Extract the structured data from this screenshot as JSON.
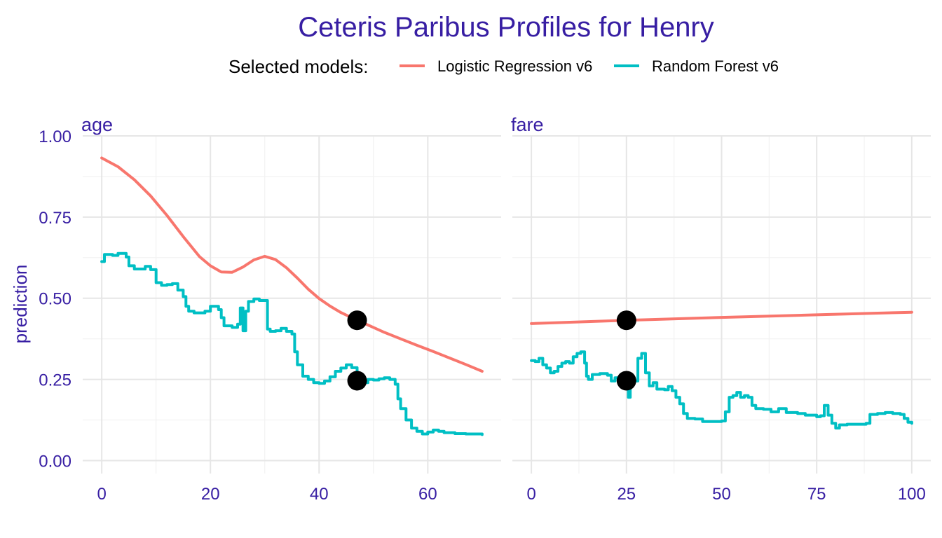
{
  "colors": {
    "text_accent": "#371EA3",
    "logistic": "#F8766D",
    "forest": "#00BFC4",
    "grid_major": "#E6E6E6",
    "grid_minor": "#F2F2F2",
    "point": "#000000"
  },
  "chart_data": {
    "type": "line",
    "title": "Ceteris Paribus Profiles for Henry",
    "legend": {
      "title": "Selected models:",
      "position": "top",
      "entries": [
        "Logistic Regression v6",
        "Random Forest v6"
      ]
    },
    "ylabel": "prediction",
    "ylim": [
      -0.04,
      1.0
    ],
    "yticks": [
      0.0,
      0.25,
      0.5,
      0.75,
      1.0
    ],
    "ytick_labels": [
      "0.00",
      "0.25",
      "0.50",
      "0.75",
      "1.00"
    ],
    "grid": true,
    "panels": [
      {
        "name": "age",
        "xlim": [
          -3.5,
          73.5
        ],
        "xticks": [
          0,
          20,
          40,
          60
        ],
        "xtick_labels": [
          "0",
          "20",
          "40",
          "60"
        ],
        "observation": {
          "x": 47,
          "values": {
            "Logistic Regression v6": 0.432,
            "Random Forest v6": 0.246
          }
        },
        "series": [
          {
            "name": "Logistic Regression v6",
            "step": false,
            "points": [
              [
                0,
                0.932
              ],
              [
                3,
                0.905
              ],
              [
                6,
                0.865
              ],
              [
                9,
                0.815
              ],
              [
                12,
                0.755
              ],
              [
                15,
                0.69
              ],
              [
                18,
                0.628
              ],
              [
                20,
                0.6
              ],
              [
                22,
                0.581
              ],
              [
                24,
                0.58
              ],
              [
                26,
                0.596
              ],
              [
                28,
                0.618
              ],
              [
                30,
                0.629
              ],
              [
                32,
                0.619
              ],
              [
                34,
                0.594
              ],
              [
                36,
                0.562
              ],
              [
                38,
                0.528
              ],
              [
                40,
                0.499
              ],
              [
                42,
                0.476
              ],
              [
                44,
                0.456
              ],
              [
                46,
                0.44
              ],
              [
                48,
                0.425
              ],
              [
                50,
                0.41
              ],
              [
                52,
                0.395
              ],
              [
                55,
                0.375
              ],
              [
                58,
                0.355
              ],
              [
                61,
                0.336
              ],
              [
                64,
                0.316
              ],
              [
                67,
                0.296
              ],
              [
                70,
                0.275
              ]
            ]
          },
          {
            "name": "Random Forest v6",
            "step": true,
            "points": [
              [
                0,
                0.613
              ],
              [
                0.5,
                0.635
              ],
              [
                2,
                0.632
              ],
              [
                3,
                0.638
              ],
              [
                4.5,
                0.627
              ],
              [
                5,
                0.6
              ],
              [
                6,
                0.59
              ],
              [
                8,
                0.598
              ],
              [
                9,
                0.588
              ],
              [
                10,
                0.548
              ],
              [
                11,
                0.54
              ],
              [
                12,
                0.542
              ],
              [
                13,
                0.545
              ],
              [
                14,
                0.525
              ],
              [
                15,
                0.505
              ],
              [
                15.5,
                0.475
              ],
              [
                16,
                0.46
              ],
              [
                17,
                0.455
              ],
              [
                19,
                0.46
              ],
              [
                20,
                0.475
              ],
              [
                21.5,
                0.465
              ],
              [
                22,
                0.44
              ],
              [
                22.5,
                0.415
              ],
              [
                24,
                0.41
              ],
              [
                25,
                0.42
              ],
              [
                25.5,
                0.47
              ],
              [
                26,
                0.4
              ],
              [
                26.5,
                0.46
              ],
              [
                27,
                0.49
              ],
              [
                28,
                0.498
              ],
              [
                29,
                0.493
              ],
              [
                30,
                0.493
              ],
              [
                30.5,
                0.405
              ],
              [
                31,
                0.398
              ],
              [
                32,
                0.4
              ],
              [
                33,
                0.407
              ],
              [
                34,
                0.398
              ],
              [
                35,
                0.39
              ],
              [
                35.5,
                0.335
              ],
              [
                36,
                0.295
              ],
              [
                37,
                0.26
              ],
              [
                38,
                0.25
              ],
              [
                39,
                0.24
              ],
              [
                40,
                0.238
              ],
              [
                41,
                0.245
              ],
              [
                42,
                0.258
              ],
              [
                43,
                0.275
              ],
              [
                44,
                0.285
              ],
              [
                45,
                0.295
              ],
              [
                46,
                0.286
              ],
              [
                47,
                0.246
              ],
              [
                48,
                0.24
              ],
              [
                49,
                0.25
              ],
              [
                50,
                0.248
              ],
              [
                51,
                0.252
              ],
              [
                52,
                0.255
              ],
              [
                53,
                0.25
              ],
              [
                54,
                0.235
              ],
              [
                54.5,
                0.19
              ],
              [
                55,
                0.16
              ],
              [
                56,
                0.125
              ],
              [
                57,
                0.1
              ],
              [
                58,
                0.09
              ],
              [
                59,
                0.082
              ],
              [
                60,
                0.088
              ],
              [
                61,
                0.094
              ],
              [
                62,
                0.09
              ],
              [
                63,
                0.086
              ],
              [
                65,
                0.083
              ],
              [
                67,
                0.082
              ],
              [
                70,
                0.08
              ]
            ]
          }
        ]
      },
      {
        "name": "fare",
        "xlim": [
          -5,
          105
        ],
        "xticks": [
          0,
          25,
          50,
          75,
          100
        ],
        "xtick_labels": [
          "0",
          "25",
          "50",
          "75",
          "100"
        ],
        "observation": {
          "x": 25,
          "values": {
            "Logistic Regression v6": 0.432,
            "Random Forest v6": 0.246
          }
        },
        "series": [
          {
            "name": "Logistic Regression v6",
            "step": false,
            "points": [
              [
                0,
                0.422
              ],
              [
                25,
                0.432
              ],
              [
                50,
                0.441
              ],
              [
                75,
                0.449
              ],
              [
                100,
                0.457
              ]
            ]
          },
          {
            "name": "Random Forest v6",
            "step": true,
            "points": [
              [
                0,
                0.308
              ],
              [
                1,
                0.305
              ],
              [
                2,
                0.315
              ],
              [
                3,
                0.295
              ],
              [
                4,
                0.285
              ],
              [
                5,
                0.27
              ],
              [
                6,
                0.275
              ],
              [
                7,
                0.29
              ],
              [
                8,
                0.3
              ],
              [
                9,
                0.305
              ],
              [
                10,
                0.3
              ],
              [
                11,
                0.32
              ],
              [
                12,
                0.33
              ],
              [
                13,
                0.335
              ],
              [
                14,
                0.3
              ],
              [
                14.5,
                0.26
              ],
              [
                15,
                0.25
              ],
              [
                16,
                0.265
              ],
              [
                18,
                0.268
              ],
              [
                20,
                0.263
              ],
              [
                21,
                0.245
              ],
              [
                22,
                0.255
              ],
              [
                23,
                0.25
              ],
              [
                24,
                0.245
              ],
              [
                25,
                0.246
              ],
              [
                25.5,
                0.195
              ],
              [
                26,
                0.245
              ],
              [
                27,
                0.245
              ],
              [
                28,
                0.315
              ],
              [
                29,
                0.33
              ],
              [
                30,
                0.27
              ],
              [
                31,
                0.23
              ],
              [
                32,
                0.24
              ],
              [
                33,
                0.22
              ],
              [
                35,
                0.218
              ],
              [
                36,
                0.228
              ],
              [
                37,
                0.215
              ],
              [
                38,
                0.195
              ],
              [
                39,
                0.175
              ],
              [
                40,
                0.145
              ],
              [
                41,
                0.13
              ],
              [
                43,
                0.128
              ],
              [
                45,
                0.12
              ],
              [
                50,
                0.122
              ],
              [
                51,
                0.15
              ],
              [
                52,
                0.195
              ],
              [
                53,
                0.2
              ],
              [
                54,
                0.21
              ],
              [
                55,
                0.195
              ],
              [
                56,
                0.2
              ],
              [
                57,
                0.195
              ],
              [
                58,
                0.17
              ],
              [
                59,
                0.16
              ],
              [
                61,
                0.158
              ],
              [
                63,
                0.15
              ],
              [
                65,
                0.16
              ],
              [
                67,
                0.148
              ],
              [
                70,
                0.145
              ],
              [
                72,
                0.14
              ],
              [
                75,
                0.135
              ],
              [
                76,
                0.138
              ],
              [
                77,
                0.17
              ],
              [
                78,
                0.14
              ],
              [
                79,
                0.115
              ],
              [
                80,
                0.1
              ],
              [
                81,
                0.11
              ],
              [
                83,
                0.112
              ],
              [
                85,
                0.112
              ],
              [
                88,
                0.115
              ],
              [
                89,
                0.142
              ],
              [
                91,
                0.145
              ],
              [
                93,
                0.148
              ],
              [
                95,
                0.145
              ],
              [
                97,
                0.142
              ],
              [
                98,
                0.13
              ],
              [
                99,
                0.118
              ],
              [
                100,
                0.115
              ]
            ]
          }
        ]
      }
    ]
  }
}
